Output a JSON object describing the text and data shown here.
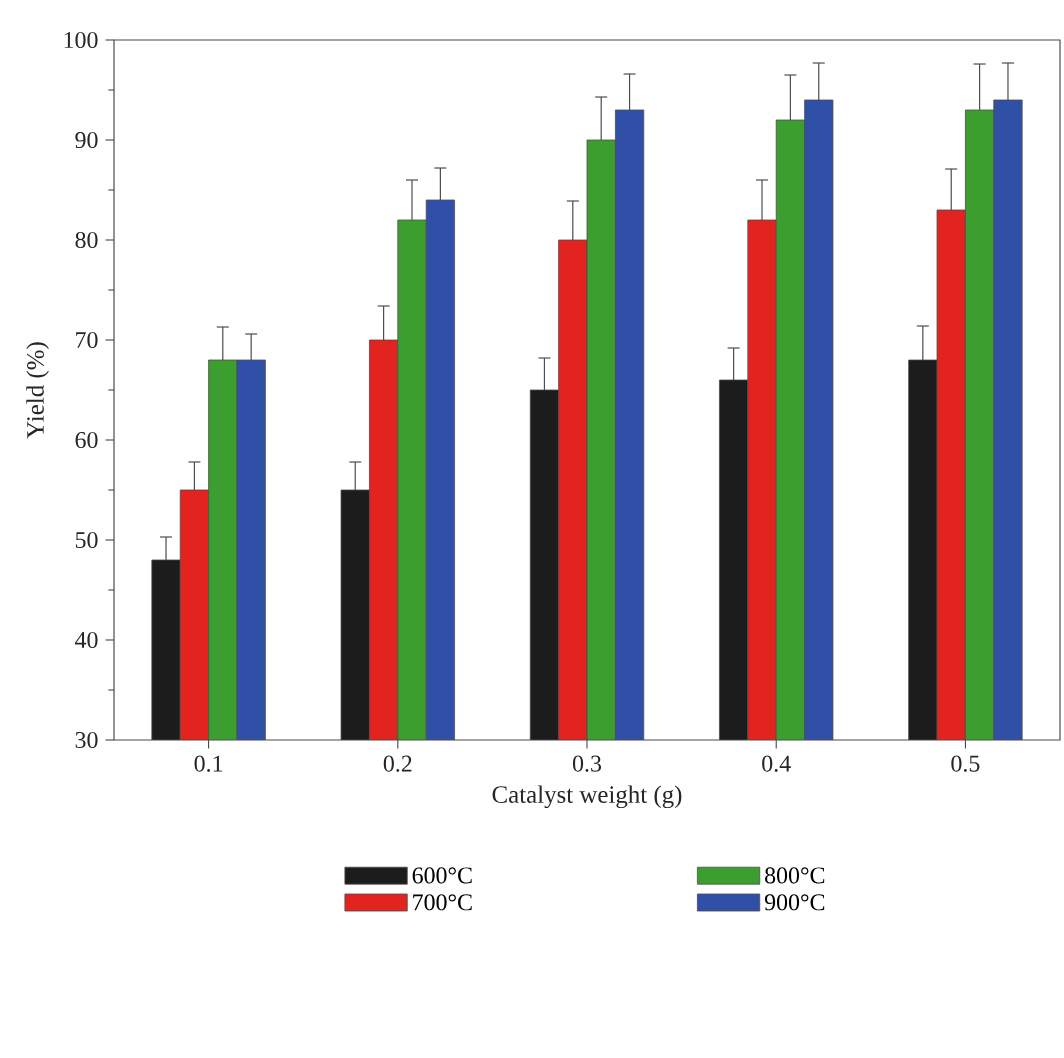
{
  "chart_data": {
    "type": "bar",
    "xlabel": "Catalyst weight (g)",
    "ylabel": "Yield (%)",
    "categories": [
      "0.1",
      "0.2",
      "0.3",
      "0.4",
      "0.5"
    ],
    "series": [
      {
        "name": "600°C",
        "color": "#1c1c1c",
        "values": [
          48,
          55,
          65,
          66,
          68
        ],
        "errors": [
          2.3,
          2.8,
          3.2,
          3.2,
          3.4
        ]
      },
      {
        "name": "700°C",
        "color": "#e3231f",
        "values": [
          55,
          70,
          80,
          82,
          83
        ],
        "errors": [
          2.8,
          3.4,
          3.9,
          4,
          4.1
        ]
      },
      {
        "name": "800°C",
        "color": "#3c9e2e",
        "values": [
          68,
          82,
          90,
          92,
          93
        ],
        "errors": [
          3.3,
          4,
          4.3,
          4.5,
          4.6
        ]
      },
      {
        "name": "900°C",
        "color": "#3050a8",
        "values": [
          68,
          84,
          93,
          94,
          94
        ],
        "errors": [
          2.6,
          3.2,
          3.6,
          3.7,
          3.7
        ]
      }
    ],
    "ylim": [
      30,
      100
    ],
    "yticks": [
      30,
      40,
      50,
      60,
      70,
      80,
      90,
      100
    ],
    "grid": false,
    "legend": "bottom"
  }
}
